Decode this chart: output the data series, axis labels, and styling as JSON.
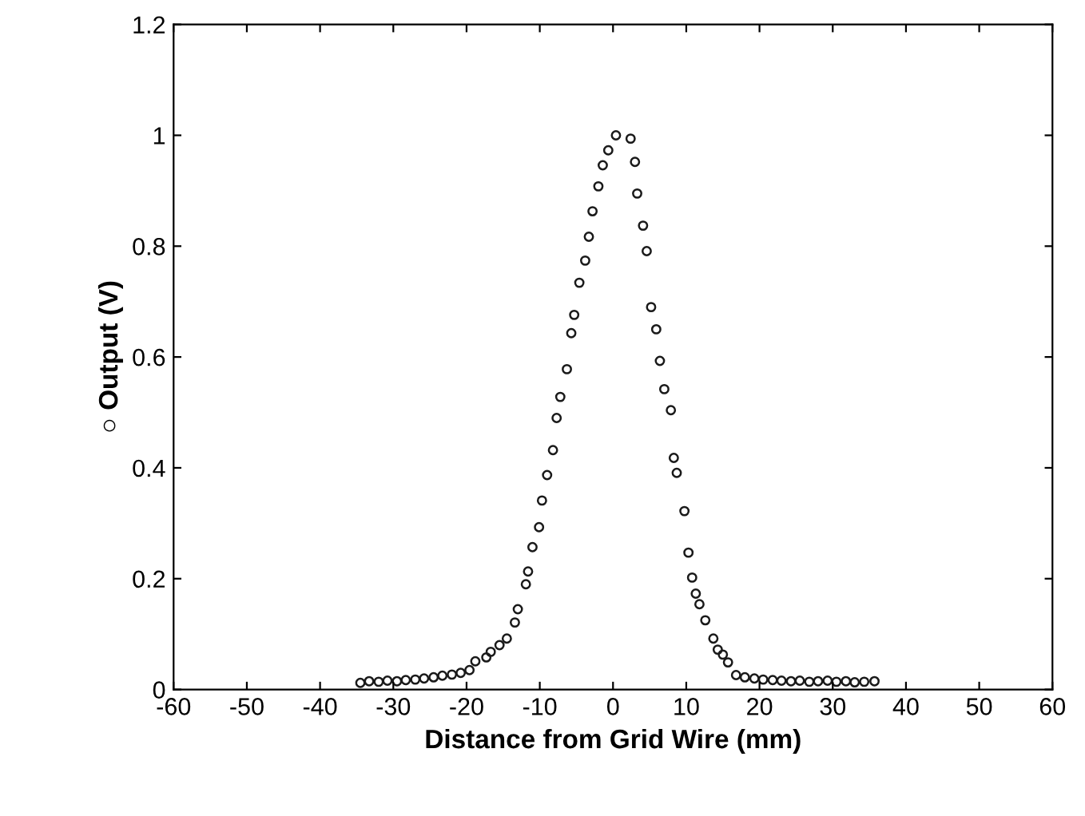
{
  "chart_data": {
    "type": "scatter",
    "xlabel": "Distance from Grid Wire (mm)",
    "ylabel": "○ Output (V)",
    "xlim": [
      -60,
      60
    ],
    "xticks": [
      -60,
      -50,
      -40,
      -30,
      -20,
      -10,
      0,
      10,
      20,
      30,
      40,
      50,
      60
    ],
    "ylim": [
      0,
      1.2
    ],
    "yticks": [
      0,
      0.2,
      0.4,
      0.6,
      0.8,
      1,
      1.2
    ],
    "grid": false,
    "marker": "circle",
    "series": [
      {
        "color": "#1a1a1a",
        "x": [
          -34.5,
          -33.3,
          -32,
          -30.8,
          -29.5,
          -28.3,
          -27,
          -25.8,
          -24.5,
          -23.3,
          -22,
          -20.8,
          -19.6,
          -18.8,
          -17.3,
          -16.7,
          -15.5,
          -14.5,
          -13.4,
          -13.0,
          -11.9,
          -11.6,
          -11.0,
          -10.1,
          -9.7,
          -9.0,
          -8.2,
          -7.7,
          -7.2,
          -6.3,
          -5.7,
          -5.3,
          -4.6,
          -3.8,
          -3.3,
          -2.8,
          -2.0,
          -1.4,
          -0.65,
          0.4,
          2.4,
          3.0,
          3.3,
          4.1,
          4.6,
          5.2,
          5.9,
          6.4,
          7.0,
          7.9,
          8.3,
          8.7,
          9.75,
          10.3,
          10.8,
          11.3,
          11.8,
          12.6,
          13.7,
          14.3,
          15.0,
          15.7,
          16.8,
          18.0,
          19.3,
          20.5,
          21.8,
          23.0,
          24.3,
          25.5,
          26.8,
          28.0,
          29.3,
          30.5,
          31.8,
          33.0,
          34.3,
          35.7
        ],
        "values": [
          0.012,
          0.015,
          0.014,
          0.016,
          0.015,
          0.017,
          0.018,
          0.02,
          0.022,
          0.025,
          0.027,
          0.03,
          0.035,
          0.051,
          0.058,
          0.068,
          0.08,
          0.092,
          0.121,
          0.145,
          0.19,
          0.213,
          0.257,
          0.293,
          0.341,
          0.387,
          0.432,
          0.49,
          0.528,
          0.578,
          0.643,
          0.676,
          0.734,
          0.774,
          0.817,
          0.863,
          0.908,
          0.946,
          0.973,
          1.0,
          0.994,
          0.952,
          0.895,
          0.837,
          0.791,
          0.69,
          0.65,
          0.593,
          0.542,
          0.504,
          0.418,
          0.391,
          0.322,
          0.247,
          0.202,
          0.173,
          0.154,
          0.125,
          0.092,
          0.072,
          0.063,
          0.049,
          0.026,
          0.022,
          0.02,
          0.018,
          0.017,
          0.016,
          0.015,
          0.016,
          0.014,
          0.015,
          0.016,
          0.014,
          0.015,
          0.013,
          0.014,
          0.015
        ]
      }
    ]
  }
}
